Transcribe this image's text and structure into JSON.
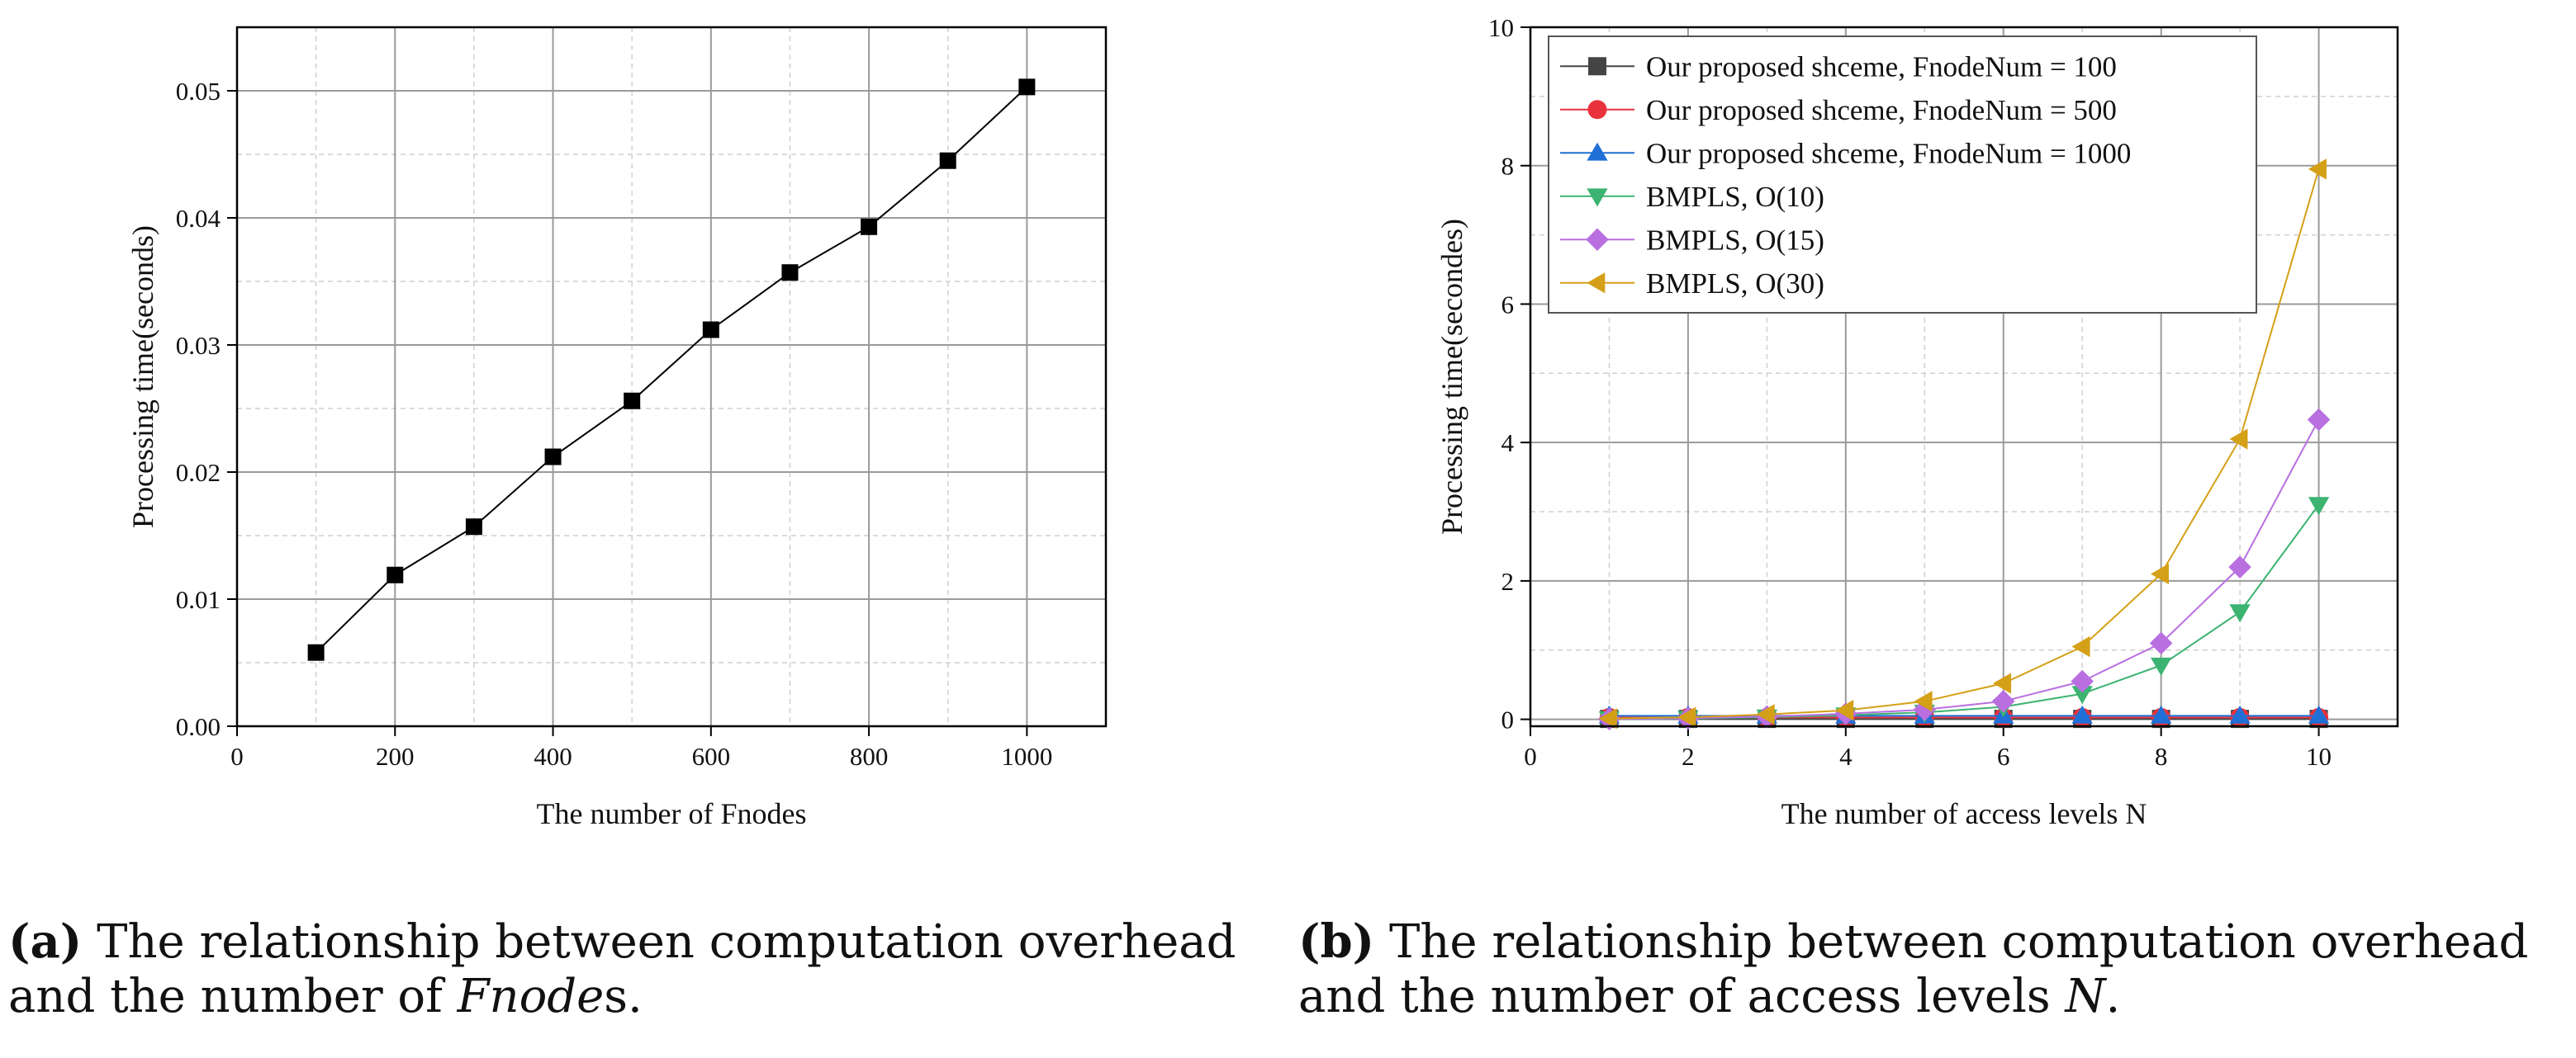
{
  "chart_data": [
    {
      "type": "line",
      "xlabel": "The number of Fnodes",
      "ylabel": "Processing time(seconds)",
      "xlim": [
        0,
        1100
      ],
      "ylim": [
        0,
        0.055
      ],
      "xticks": [
        0,
        200,
        400,
        600,
        800,
        1000
      ],
      "xtick_labels": [
        "0",
        "200",
        "400",
        "600",
        "800",
        "1000"
      ],
      "yticks": [
        0,
        0.01,
        0.02,
        0.03,
        0.04,
        0.05
      ],
      "ytick_labels": [
        "0.00",
        "0.01",
        "0.02",
        "0.03",
        "0.04",
        "0.05"
      ],
      "grid": true,
      "series": [
        {
          "name": "",
          "color": "#000000",
          "marker": "square",
          "x": [
            100,
            200,
            300,
            400,
            500,
            600,
            700,
            800,
            900,
            1000
          ],
          "values": [
            0.0058,
            0.0119,
            0.0157,
            0.0212,
            0.0256,
            0.0312,
            0.0357,
            0.0393,
            0.0445,
            0.0503
          ]
        }
      ]
    },
    {
      "type": "line",
      "xlabel": "The number of access levels N",
      "ylabel": "Processing time(secondes)",
      "xlim": [
        0,
        11
      ],
      "ylim": [
        -0.1,
        10
      ],
      "xticks": [
        0,
        2,
        4,
        6,
        8,
        10
      ],
      "xtick_labels": [
        "0",
        "2",
        "4",
        "6",
        "8",
        "10"
      ],
      "yticks": [
        0,
        2,
        4,
        6,
        8,
        10
      ],
      "ytick_labels": [
        "0",
        "2",
        "4",
        "6",
        "8",
        "10"
      ],
      "grid": true,
      "legend_position": "top-left",
      "x": [
        1,
        2,
        3,
        4,
        5,
        6,
        7,
        8,
        9,
        10
      ],
      "series": [
        {
          "name": "Our proposed shceme, FnodeNum = 100",
          "color": "#444444",
          "marker": "square",
          "values": [
            0.006,
            0.006,
            0.006,
            0.006,
            0.006,
            0.006,
            0.006,
            0.006,
            0.006,
            0.006
          ]
        },
        {
          "name": "Our proposed shceme, FnodeNum = 500",
          "color": "#e8323c",
          "marker": "circle",
          "values": [
            0.026,
            0.026,
            0.026,
            0.026,
            0.026,
            0.026,
            0.026,
            0.026,
            0.026,
            0.026
          ]
        },
        {
          "name": "Our proposed shceme, FnodeNum = 1000",
          "color": "#1f6fd6",
          "marker": "triangle-up",
          "values": [
            0.05,
            0.05,
            0.05,
            0.05,
            0.05,
            0.05,
            0.05,
            0.05,
            0.05,
            0.05
          ]
        },
        {
          "name": "BMPLS, O(10)",
          "color": "#3cb371",
          "marker": "triangle-down",
          "values": [
            0.003,
            0.01,
            0.03,
            0.06,
            0.1,
            0.18,
            0.37,
            0.78,
            1.55,
            3.1
          ]
        },
        {
          "name": "BMPLS, O(15)",
          "color": "#b96fe0",
          "marker": "diamond",
          "values": [
            0.004,
            0.015,
            0.04,
            0.08,
            0.14,
            0.26,
            0.55,
            1.1,
            2.2,
            4.33
          ]
        },
        {
          "name": "BMPLS, O(30)",
          "color": "#d4a017",
          "marker": "triangle-left",
          "values": [
            0.01,
            0.03,
            0.07,
            0.13,
            0.26,
            0.52,
            1.05,
            2.1,
            4.05,
            7.95
          ]
        }
      ]
    }
  ],
  "captions": {
    "a": {
      "label": "(a)",
      "line1": "The relationship between computation overhead",
      "line2_pre": "and the number of ",
      "line2_italic": "Fnode",
      "line2_post": "s."
    },
    "b": {
      "label": "(b)",
      "line1": "The relationship between computation overhead",
      "line2_pre": "and the number of access levels ",
      "line2_italic": "N",
      "line2_post": "."
    }
  }
}
